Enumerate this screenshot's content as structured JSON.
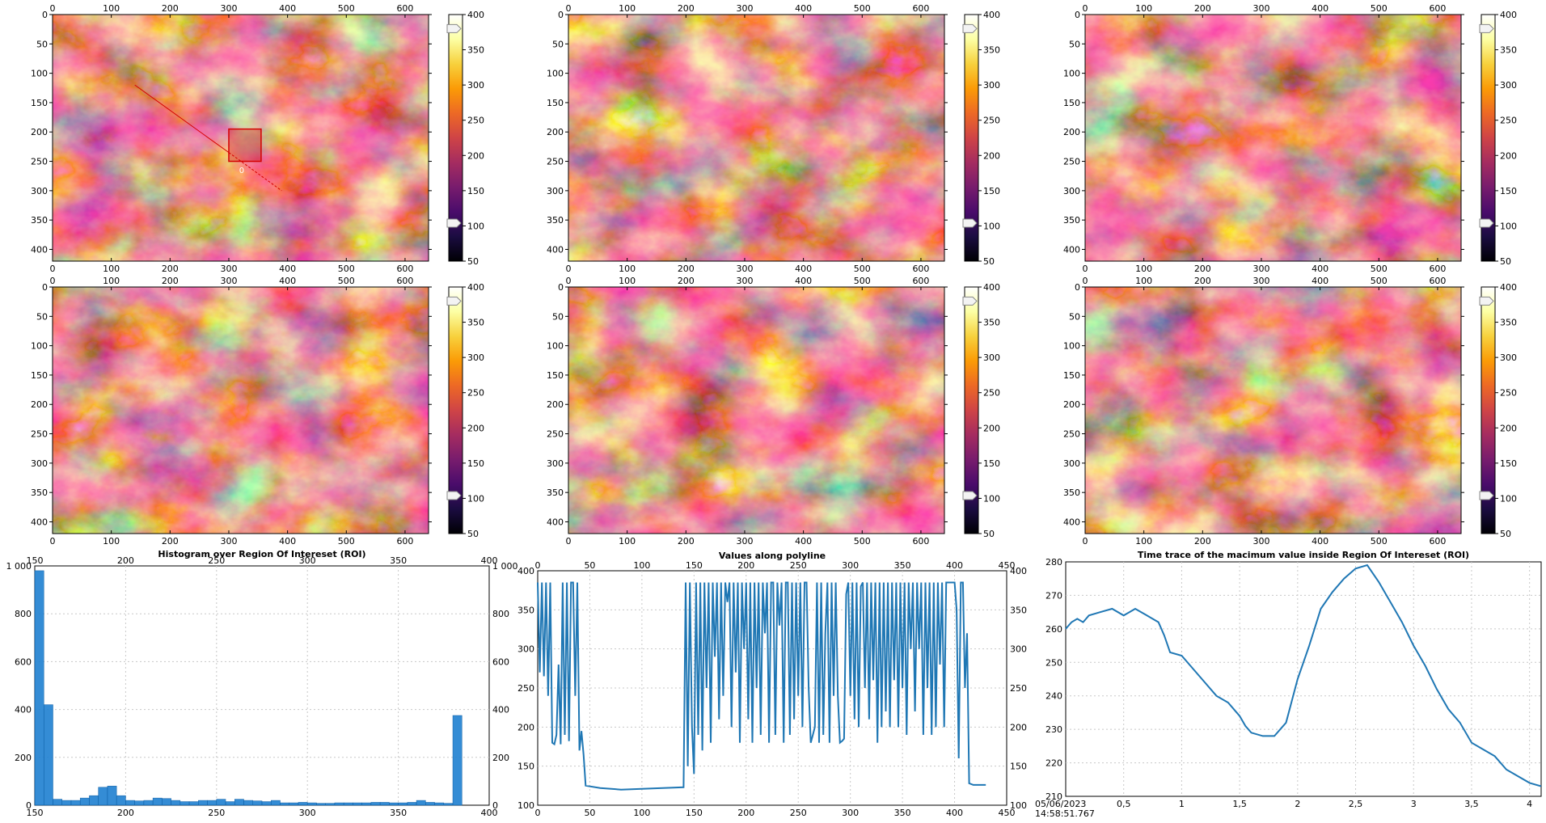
{
  "colors": {
    "plot_line": "#1f77b4",
    "bar_fill": "#1e7fd0",
    "grid": "#c8c8c8",
    "roi": "#d40000",
    "cmap": [
      "#000004",
      "#1b0c41",
      "#4a0c6b",
      "#781c6d",
      "#a52c60",
      "#cf4446",
      "#ed6925",
      "#fb9b06",
      "#f7d13d",
      "#fcffa4",
      "#ffffff"
    ]
  },
  "image_panels": [
    {
      "id": "img-1",
      "has_roi": true,
      "roi_label": "0"
    },
    {
      "id": "img-2",
      "has_roi": false
    },
    {
      "id": "img-3",
      "has_roi": false
    },
    {
      "id": "img-4",
      "has_roi": false
    },
    {
      "id": "img-5",
      "has_roi": false
    },
    {
      "id": "img-6",
      "has_roi": false
    }
  ],
  "chart_data": [
    {
      "type": "heatmap",
      "note_scope": "each of the 6 image panels",
      "x_ticks": [
        0,
        100,
        200,
        300,
        400,
        500,
        600
      ],
      "y_ticks": [
        0,
        50,
        100,
        150,
        200,
        250,
        300,
        350,
        400
      ],
      "xlim": [
        0,
        640
      ],
      "ylim": [
        0,
        420
      ],
      "colorbar": {
        "ticks": [
          400,
          350,
          300,
          250,
          200,
          150,
          100,
          50
        ],
        "range": [
          50,
          400
        ],
        "colormap": "inferno"
      },
      "colorbar_handles": [
        380,
        104
      ]
    },
    {
      "type": "bar",
      "title": "Histogram over Region Of Intereset (ROI)",
      "x_ticks": [
        150,
        200,
        250,
        300,
        350,
        400
      ],
      "y_ticks_left": [
        "0",
        "200",
        "400",
        "600",
        "800",
        "1 000"
      ],
      "y_ticks_right": [
        "0",
        "200",
        "400",
        "600",
        "800",
        "1 000"
      ],
      "xlim": [
        150,
        400
      ],
      "ylim": [
        0,
        1000
      ],
      "bin_width": 5,
      "bins": [
        [
          150,
          980
        ],
        [
          155,
          420
        ],
        [
          160,
          25
        ],
        [
          165,
          20
        ],
        [
          170,
          20
        ],
        [
          175,
          30
        ],
        [
          180,
          40
        ],
        [
          185,
          75
        ],
        [
          190,
          80
        ],
        [
          195,
          40
        ],
        [
          200,
          20
        ],
        [
          205,
          18
        ],
        [
          210,
          20
        ],
        [
          215,
          30
        ],
        [
          220,
          28
        ],
        [
          225,
          20
        ],
        [
          230,
          15
        ],
        [
          235,
          15
        ],
        [
          240,
          20
        ],
        [
          245,
          20
        ],
        [
          250,
          25
        ],
        [
          255,
          15
        ],
        [
          260,
          25
        ],
        [
          265,
          20
        ],
        [
          270,
          18
        ],
        [
          275,
          15
        ],
        [
          280,
          20
        ],
        [
          285,
          10
        ],
        [
          290,
          10
        ],
        [
          295,
          12
        ],
        [
          300,
          10
        ],
        [
          305,
          8
        ],
        [
          310,
          8
        ],
        [
          315,
          10
        ],
        [
          320,
          10
        ],
        [
          325,
          10
        ],
        [
          330,
          10
        ],
        [
          335,
          12
        ],
        [
          340,
          12
        ],
        [
          345,
          10
        ],
        [
          350,
          10
        ],
        [
          355,
          12
        ],
        [
          360,
          20
        ],
        [
          365,
          12
        ],
        [
          370,
          10
        ],
        [
          375,
          8
        ],
        [
          380,
          375
        ]
      ]
    },
    {
      "type": "line",
      "title": "Values along polyline",
      "x_ticks": [
        0,
        50,
        100,
        150,
        200,
        250,
        300,
        350,
        400,
        450
      ],
      "y_ticks": [
        100,
        150,
        200,
        250,
        300,
        350,
        400
      ],
      "xlim": [
        0,
        450
      ],
      "ylim": [
        100,
        400
      ],
      "points": [
        [
          0,
          385
        ],
        [
          2,
          270
        ],
        [
          4,
          385
        ],
        [
          6,
          265
        ],
        [
          8,
          385
        ],
        [
          10,
          240
        ],
        [
          12,
          385
        ],
        [
          14,
          180
        ],
        [
          16,
          178
        ],
        [
          18,
          190
        ],
        [
          20,
          280
        ],
        [
          22,
          178
        ],
        [
          24,
          385
        ],
        [
          26,
          190
        ],
        [
          28,
          385
        ],
        [
          30,
          182
        ],
        [
          32,
          385
        ],
        [
          34,
          385
        ],
        [
          36,
          240
        ],
        [
          38,
          385
        ],
        [
          40,
          170
        ],
        [
          42,
          195
        ],
        [
          44,
          165
        ],
        [
          46,
          125
        ],
        [
          60,
          122
        ],
        [
          80,
          120
        ],
        [
          100,
          121
        ],
        [
          120,
          122
        ],
        [
          140,
          123
        ],
        [
          142,
          385
        ],
        [
          144,
          150
        ],
        [
          146,
          385
        ],
        [
          148,
          200
        ],
        [
          150,
          140
        ],
        [
          152,
          385
        ],
        [
          154,
          190
        ],
        [
          156,
          385
        ],
        [
          158,
          170
        ],
        [
          160,
          385
        ],
        [
          162,
          250
        ],
        [
          164,
          385
        ],
        [
          166,
          180
        ],
        [
          168,
          385
        ],
        [
          170,
          290
        ],
        [
          172,
          385
        ],
        [
          174,
          210
        ],
        [
          176,
          385
        ],
        [
          178,
          240
        ],
        [
          180,
          385
        ],
        [
          182,
          360
        ],
        [
          184,
          385
        ],
        [
          186,
          200
        ],
        [
          188,
          385
        ],
        [
          190,
          270
        ],
        [
          192,
          385
        ],
        [
          194,
          180
        ],
        [
          196,
          385
        ],
        [
          198,
          300
        ],
        [
          200,
          385
        ],
        [
          202,
          210
        ],
        [
          204,
          385
        ],
        [
          206,
          180
        ],
        [
          208,
          385
        ],
        [
          210,
          250
        ],
        [
          212,
          385
        ],
        [
          214,
          190
        ],
        [
          216,
          385
        ],
        [
          218,
          320
        ],
        [
          220,
          385
        ],
        [
          222,
          180
        ],
        [
          224,
          385
        ],
        [
          226,
          385
        ],
        [
          228,
          190
        ],
        [
          230,
          385
        ],
        [
          232,
          330
        ],
        [
          234,
          385
        ],
        [
          236,
          180
        ],
        [
          238,
          385
        ],
        [
          240,
          385
        ],
        [
          242,
          190
        ],
        [
          244,
          385
        ],
        [
          246,
          210
        ],
        [
          248,
          385
        ],
        [
          250,
          240
        ],
        [
          252,
          385
        ],
        [
          254,
          200
        ],
        [
          256,
          385
        ],
        [
          258,
          385
        ],
        [
          260,
          250
        ],
        [
          262,
          180
        ],
        [
          264,
          190
        ],
        [
          266,
          200
        ],
        [
          268,
          385
        ],
        [
          270,
          180
        ],
        [
          272,
          385
        ],
        [
          274,
          190
        ],
        [
          276,
          320
        ],
        [
          278,
          385
        ],
        [
          280,
          180
        ],
        [
          282,
          385
        ],
        [
          284,
          240
        ],
        [
          286,
          385
        ],
        [
          288,
          240
        ],
        [
          290,
          180
        ],
        [
          292,
          182
        ],
        [
          294,
          185
        ],
        [
          296,
          370
        ],
        [
          298,
          385
        ],
        [
          300,
          240
        ],
        [
          302,
          385
        ],
        [
          304,
          210
        ],
        [
          306,
          385
        ],
        [
          308,
          200
        ],
        [
          310,
          380
        ],
        [
          312,
          385
        ],
        [
          314,
          250
        ],
        [
          316,
          385
        ],
        [
          318,
          210
        ],
        [
          320,
          385
        ],
        [
          322,
          260
        ],
        [
          324,
          385
        ],
        [
          326,
          180
        ],
        [
          328,
          385
        ],
        [
          330,
          200
        ],
        [
          332,
          385
        ],
        [
          334,
          220
        ],
        [
          336,
          385
        ],
        [
          338,
          200
        ],
        [
          340,
          385
        ],
        [
          342,
          260
        ],
        [
          344,
          385
        ],
        [
          346,
          200
        ],
        [
          348,
          385
        ],
        [
          350,
          250
        ],
        [
          352,
          385
        ],
        [
          354,
          190
        ],
        [
          356,
          385
        ],
        [
          358,
          300
        ],
        [
          360,
          385
        ],
        [
          362,
          220
        ],
        [
          364,
          385
        ],
        [
          366,
          300
        ],
        [
          368,
          385
        ],
        [
          370,
          190
        ],
        [
          372,
          385
        ],
        [
          374,
          250
        ],
        [
          376,
          385
        ],
        [
          378,
          190
        ],
        [
          380,
          385
        ],
        [
          382,
          200
        ],
        [
          384,
          385
        ],
        [
          386,
          280
        ],
        [
          388,
          385
        ],
        [
          390,
          200
        ],
        [
          392,
          385
        ],
        [
          394,
          385
        ],
        [
          396,
          385
        ],
        [
          398,
          385
        ],
        [
          400,
          385
        ],
        [
          402,
          350
        ],
        [
          404,
          160
        ],
        [
          406,
          385
        ],
        [
          408,
          385
        ],
        [
          410,
          250
        ],
        [
          412,
          320
        ],
        [
          414,
          128
        ],
        [
          418,
          126
        ],
        [
          430,
          126
        ]
      ]
    },
    {
      "type": "line",
      "title": "Time trace of the macimum value inside Region Of Intereset (ROI)",
      "x_ticks": [
        "0,5",
        "1",
        "1,5",
        "2",
        "2,5",
        "3",
        "3,5",
        "4"
      ],
      "x_tick_values": [
        0.5,
        1,
        1.5,
        2,
        2.5,
        3,
        3.5,
        4
      ],
      "x_origin_label": [
        "05/06/2023",
        "14:58:51.767"
      ],
      "y_ticks": [
        210,
        220,
        230,
        240,
        250,
        260,
        270,
        280
      ],
      "xlim": [
        0,
        4.1
      ],
      "ylim": [
        210,
        280
      ],
      "points": [
        [
          0,
          260
        ],
        [
          0.05,
          262
        ],
        [
          0.1,
          263
        ],
        [
          0.15,
          262
        ],
        [
          0.2,
          264
        ],
        [
          0.3,
          265
        ],
        [
          0.4,
          266
        ],
        [
          0.5,
          264
        ],
        [
          0.6,
          266
        ],
        [
          0.7,
          264
        ],
        [
          0.8,
          262
        ],
        [
          0.85,
          258
        ],
        [
          0.9,
          253
        ],
        [
          1.0,
          252
        ],
        [
          1.1,
          248
        ],
        [
          1.2,
          244
        ],
        [
          1.3,
          240
        ],
        [
          1.4,
          238
        ],
        [
          1.5,
          234
        ],
        [
          1.55,
          231
        ],
        [
          1.6,
          229
        ],
        [
          1.7,
          228
        ],
        [
          1.8,
          228
        ],
        [
          1.9,
          232
        ],
        [
          2.0,
          245
        ],
        [
          2.1,
          255
        ],
        [
          2.2,
          266
        ],
        [
          2.3,
          271
        ],
        [
          2.4,
          275
        ],
        [
          2.5,
          278
        ],
        [
          2.6,
          279
        ],
        [
          2.7,
          274
        ],
        [
          2.8,
          268
        ],
        [
          2.9,
          262
        ],
        [
          3.0,
          255
        ],
        [
          3.1,
          249
        ],
        [
          3.2,
          242
        ],
        [
          3.3,
          236
        ],
        [
          3.4,
          232
        ],
        [
          3.5,
          226
        ],
        [
          3.6,
          224
        ],
        [
          3.7,
          222
        ],
        [
          3.8,
          218
        ],
        [
          3.9,
          216
        ],
        [
          4.0,
          214
        ],
        [
          4.1,
          213
        ]
      ]
    }
  ]
}
